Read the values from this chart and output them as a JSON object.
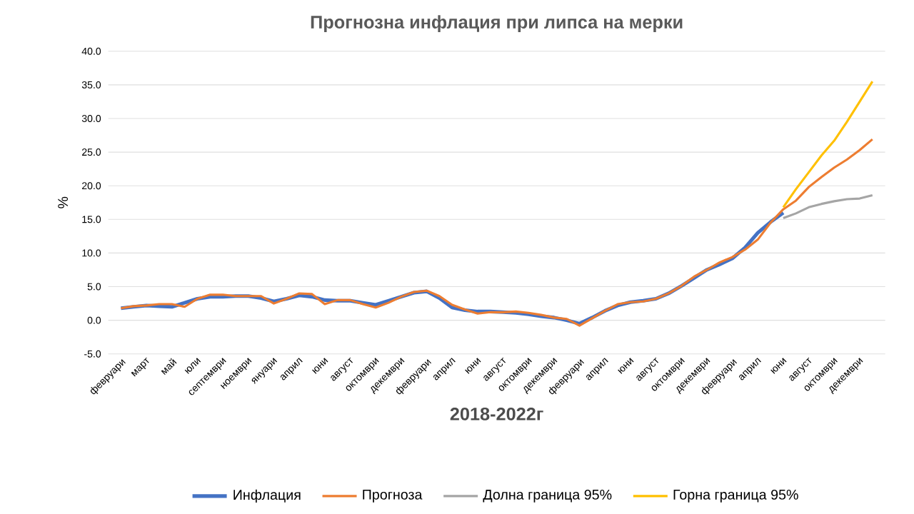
{
  "chart_data": {
    "type": "line",
    "title": "Прогнозна инфлация при липса на мерки",
    "xlabel": "2018-2022г",
    "ylabel": "%",
    "categories": [
      "февруари",
      null,
      "март",
      null,
      "май",
      null,
      "юли",
      null,
      "септември",
      null,
      "ноември",
      null,
      "януари",
      null,
      "април",
      null,
      "юни",
      null,
      "август",
      null,
      "октомври",
      null,
      "декември",
      null,
      "февруари",
      null,
      "април",
      null,
      "юни",
      null,
      "август",
      null,
      "октомври",
      null,
      "декември",
      null,
      "февруари",
      null,
      "април",
      null,
      "юни",
      null,
      "август",
      null,
      "октомври",
      null,
      "декември",
      null,
      "февруари",
      null,
      "април",
      null,
      "юни",
      null,
      "август",
      null,
      "октомври",
      null,
      "декември",
      null
    ],
    "series": [
      {
        "name": "Инфлация",
        "color": "#4472c4",
        "values": [
          1.8,
          2.0,
          2.2,
          2.1,
          2.0,
          2.6,
          3.2,
          3.5,
          3.5,
          3.6,
          3.6,
          3.3,
          2.8,
          3.2,
          3.7,
          3.5,
          3.0,
          2.9,
          2.9,
          2.6,
          2.3,
          2.9,
          3.5,
          4.1,
          4.3,
          3.3,
          1.9,
          1.5,
          1.3,
          1.3,
          1.2,
          1.1,
          0.9,
          0.6,
          0.4,
          0.0,
          -0.5,
          0.4,
          1.4,
          2.2,
          2.7,
          2.9,
          3.2,
          4.0,
          5.1,
          6.3,
          7.5,
          8.3,
          9.2,
          10.8,
          13.0,
          14.6,
          16.0,
          null,
          null,
          null,
          null,
          null,
          null,
          null
        ]
      },
      {
        "name": "Прогноза",
        "color": "#ed7d31",
        "values": [
          1.8,
          2.1,
          2.2,
          2.4,
          2.4,
          2.0,
          3.2,
          3.8,
          3.8,
          3.6,
          3.6,
          3.6,
          2.5,
          3.2,
          4.0,
          3.9,
          2.4,
          3.0,
          3.0,
          2.4,
          1.9,
          2.6,
          3.5,
          4.2,
          4.4,
          3.6,
          2.3,
          1.6,
          1.0,
          1.2,
          1.2,
          1.3,
          1.1,
          0.8,
          0.4,
          0.2,
          -0.8,
          0.3,
          1.4,
          2.4,
          2.7,
          2.8,
          3.2,
          4.0,
          5.1,
          6.5,
          7.5,
          8.6,
          9.4,
          10.5,
          12.0,
          14.5,
          16.5,
          17.8,
          19.8,
          21.3,
          22.7,
          23.9,
          25.3,
          26.9
        ]
      },
      {
        "name": "Долна граница 95%",
        "color": "#a5a5a5",
        "values": [
          null,
          null,
          null,
          null,
          null,
          null,
          null,
          null,
          null,
          null,
          null,
          null,
          null,
          null,
          null,
          null,
          null,
          null,
          null,
          null,
          null,
          null,
          null,
          null,
          null,
          null,
          null,
          null,
          null,
          null,
          null,
          null,
          null,
          null,
          null,
          null,
          null,
          null,
          null,
          null,
          null,
          null,
          null,
          null,
          null,
          null,
          null,
          null,
          null,
          null,
          null,
          null,
          15.2,
          15.9,
          16.8,
          17.3,
          17.7,
          18.0,
          18.1,
          18.6
        ]
      },
      {
        "name": "Горна граница 95%",
        "color": "#ffc000",
        "values": [
          null,
          null,
          null,
          null,
          null,
          null,
          null,
          null,
          null,
          null,
          null,
          null,
          null,
          null,
          null,
          null,
          null,
          null,
          null,
          null,
          null,
          null,
          null,
          null,
          null,
          null,
          null,
          null,
          null,
          null,
          null,
          null,
          null,
          null,
          null,
          null,
          null,
          null,
          null,
          null,
          null,
          null,
          null,
          null,
          null,
          null,
          null,
          null,
          null,
          null,
          null,
          null,
          16.8,
          19.5,
          22.0,
          24.5,
          26.7,
          29.5,
          32.5,
          35.5
        ]
      }
    ],
    "ylim": [
      -5,
      40
    ],
    "yticks": [
      {
        "value": -5,
        "label": "-5.0"
      },
      {
        "value": 0,
        "label": "0.0"
      },
      {
        "value": 5,
        "label": "5.0"
      },
      {
        "value": 10,
        "label": "10.0"
      },
      {
        "value": 15,
        "label": "15.0"
      },
      {
        "value": 20,
        "label": "20.0"
      },
      {
        "value": 25,
        "label": "25.0"
      },
      {
        "value": 30,
        "label": "30.0"
      },
      {
        "value": 35,
        "label": "35.0"
      },
      {
        "value": 40,
        "label": "40.0"
      }
    ],
    "grid": "y",
    "legend": "bottom",
    "marker": "none",
    "line_style": "solid"
  }
}
